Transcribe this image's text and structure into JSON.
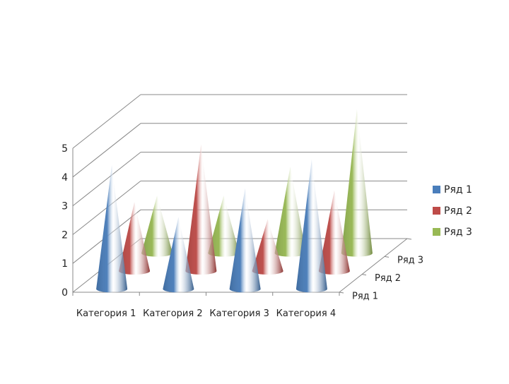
{
  "chart_data": {
    "type": "bar",
    "style": "3d-cone",
    "categories": [
      "Категория 1",
      "Категория 2",
      "Категория 3",
      "Категория 4"
    ],
    "series": [
      {
        "name": "Ряд 1",
        "color": "#4a7ebb",
        "values": [
          4.3,
          2.5,
          3.5,
          4.5
        ]
      },
      {
        "name": "Ряд 2",
        "color": "#be4b48",
        "values": [
          2.4,
          4.4,
          1.8,
          2.8
        ]
      },
      {
        "name": "Ряд 3",
        "color": "#98b954",
        "values": [
          2.0,
          2.0,
          3.0,
          5.0
        ]
      }
    ],
    "depth_labels": [
      "Ряд 1",
      "Ряд 2",
      "Ряд 3"
    ],
    "yticks": [
      "0",
      "1",
      "2",
      "3",
      "4",
      "5"
    ],
    "ylim": [
      0,
      5
    ],
    "grid": true,
    "legend_position": "right"
  }
}
